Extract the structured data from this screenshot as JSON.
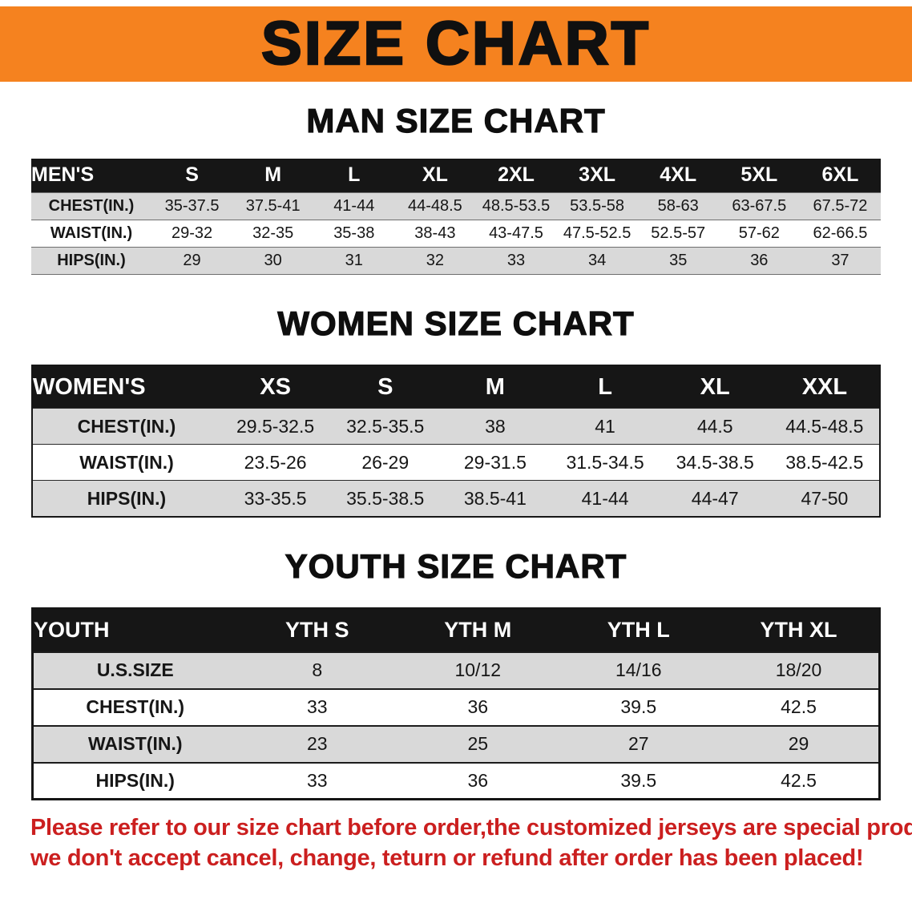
{
  "banner": {
    "title": "SIZE CHART",
    "bg_color": "#f5821f",
    "text_color": "#101010"
  },
  "sections": [
    {
      "id": "men",
      "heading": "MAN SIZE CHART",
      "table": {
        "header_label": "MEN'S",
        "columns": [
          "S",
          "M",
          "L",
          "XL",
          "2XL",
          "3XL",
          "4XL",
          "5XL",
          "6XL"
        ],
        "rows": [
          {
            "label": "CHEST(IN.)",
            "values": [
              "35-37.5",
              "37.5-41",
              "41-44",
              "44-48.5",
              "48.5-53.5",
              "53.5-58",
              "58-63",
              "63-67.5",
              "67.5-72"
            ]
          },
          {
            "label": "WAIST(IN.)",
            "values": [
              "29-32",
              "32-35",
              "35-38",
              "38-43",
              "43-47.5",
              "47.5-52.5",
              "52.5-57",
              "57-62",
              "62-66.5"
            ]
          },
          {
            "label": "HIPS(IN.)",
            "values": [
              "29",
              "30",
              "31",
              "32",
              "33",
              "34",
              "35",
              "36",
              "37"
            ]
          }
        ]
      }
    },
    {
      "id": "women",
      "heading": "WOMEN SIZE CHART",
      "table": {
        "header_label": "WOMEN'S",
        "columns": [
          "XS",
          "S",
          "M",
          "L",
          "XL",
          "XXL"
        ],
        "rows": [
          {
            "label": "CHEST(IN.)",
            "values": [
              "29.5-32.5",
              "32.5-35.5",
              "38",
              "41",
              "44.5",
              "44.5-48.5"
            ]
          },
          {
            "label": "WAIST(IN.)",
            "values": [
              "23.5-26",
              "26-29",
              "29-31.5",
              "31.5-34.5",
              "34.5-38.5",
              "38.5-42.5"
            ]
          },
          {
            "label": "HIPS(IN.)",
            "values": [
              "33-35.5",
              "35.5-38.5",
              "38.5-41",
              "41-44",
              "44-47",
              "47-50"
            ]
          }
        ]
      }
    },
    {
      "id": "youth",
      "heading": "YOUTH SIZE CHART",
      "table": {
        "header_label": "YOUTH",
        "columns": [
          "YTH S",
          "YTH M",
          "YTH L",
          "YTH XL"
        ],
        "rows": [
          {
            "label": "U.S.SIZE",
            "values": [
              "8",
              "10/12",
              "14/16",
              "18/20"
            ]
          },
          {
            "label": "CHEST(IN.)",
            "values": [
              "33",
              "36",
              "39.5",
              "42.5"
            ]
          },
          {
            "label": "WAIST(IN.)",
            "values": [
              "23",
              "25",
              "27",
              "29"
            ]
          },
          {
            "label": "HIPS(IN.)",
            "values": [
              "33",
              "36",
              "39.5",
              "42.5"
            ]
          }
        ]
      }
    }
  ],
  "table_style": {
    "label_col_width": {
      "men": 150,
      "women": 235,
      "youth": 255
    },
    "shade_color": "#d9d9d9",
    "header_bg": "#161616"
  },
  "disclaimer": {
    "line1": "Please refer to our size chart before order,the customized jerseys are special products,",
    "line2": "we don't accept cancel, change, teturn or refund after order has been placed!",
    "color": "#cb1f1f"
  }
}
